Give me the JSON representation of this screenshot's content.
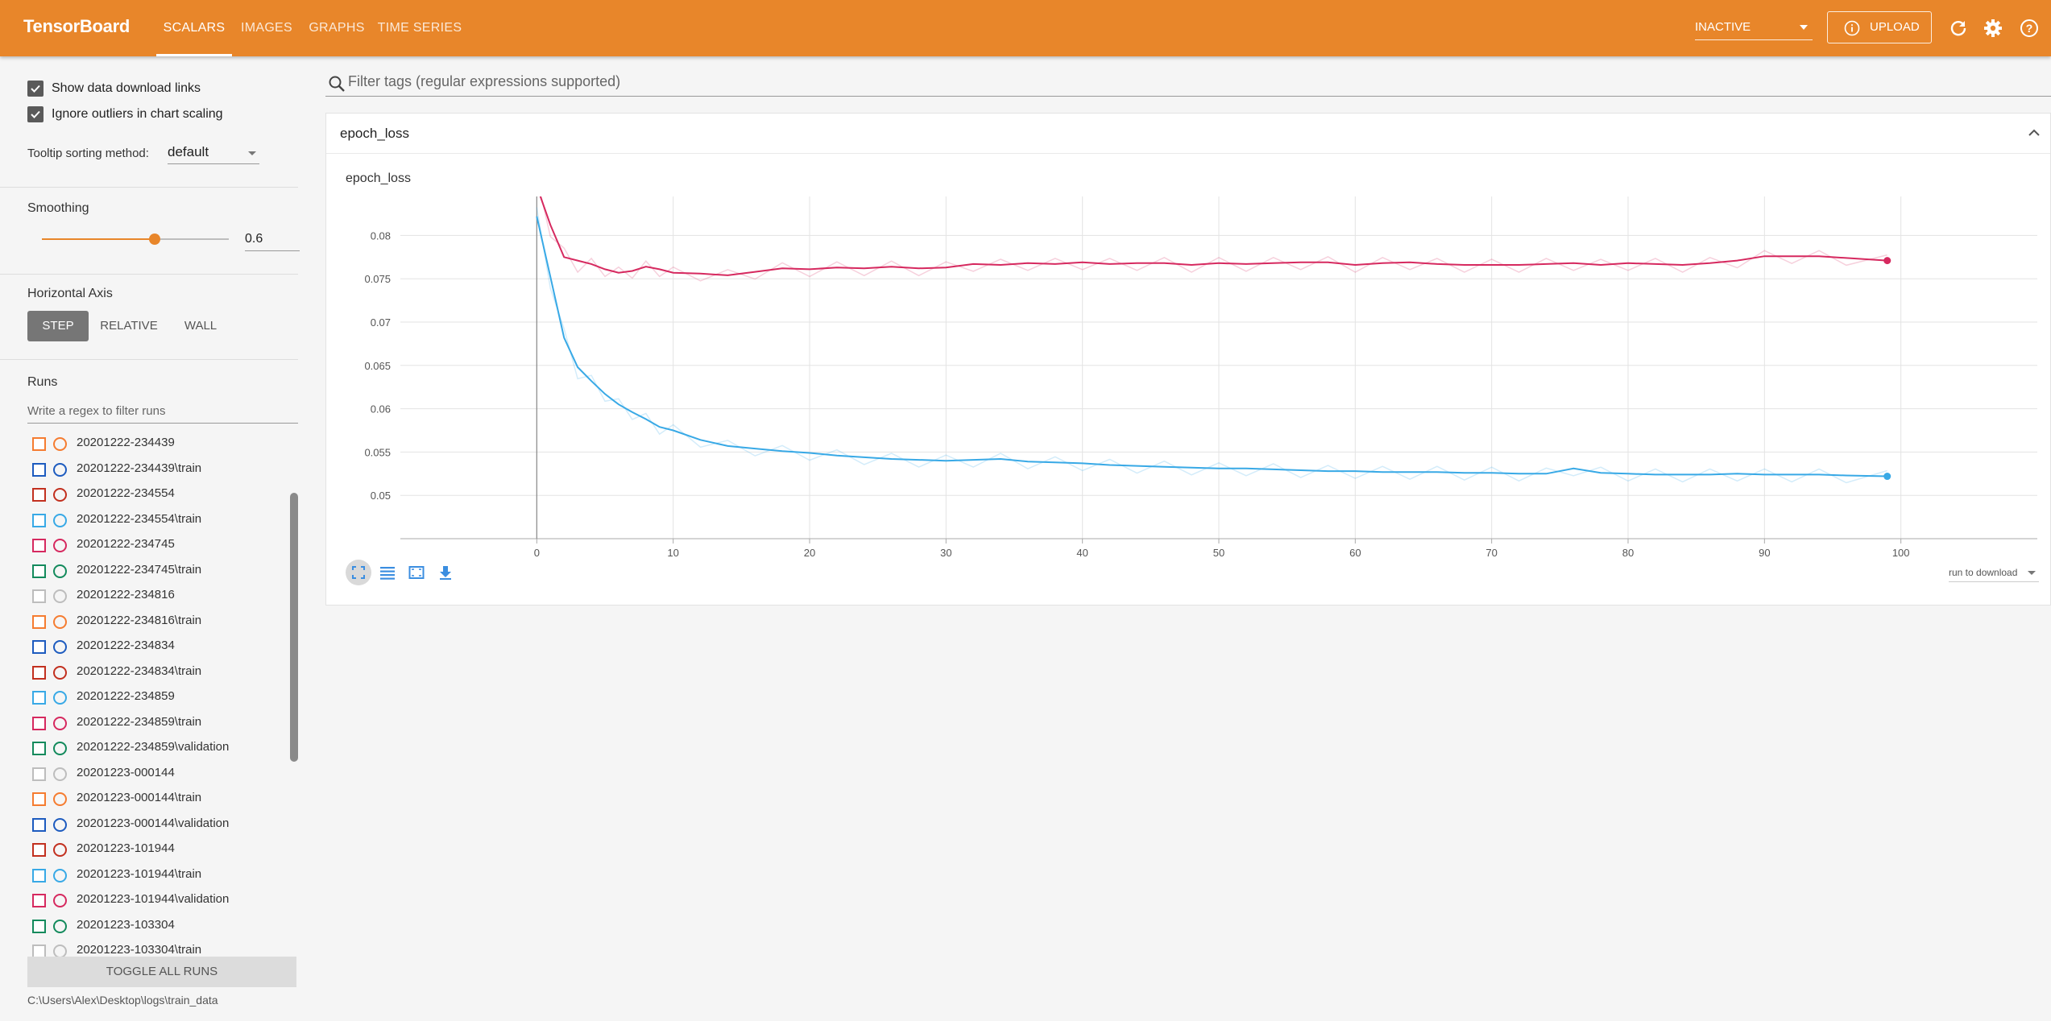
{
  "header": {
    "brand": "TensorBoard",
    "tabs": [
      {
        "label": "SCALARS",
        "active": true
      },
      {
        "label": "IMAGES",
        "active": false
      },
      {
        "label": "GRAPHS",
        "active": false
      },
      {
        "label": "TIME SERIES",
        "active": false
      }
    ],
    "status": "INACTIVE",
    "upload_label": "UPLOAD",
    "accent": "#e8862a"
  },
  "sidebar": {
    "show_download_links": {
      "label": "Show data download links",
      "checked": true
    },
    "ignore_outliers": {
      "label": "Ignore outliers in chart scaling",
      "checked": true
    },
    "tooltip_label": "Tooltip sorting method:",
    "tooltip_value": "default",
    "smoothing_label": "Smoothing",
    "smoothing_value": "0.6",
    "horizontal_axis_label": "Horizontal Axis",
    "axis_options": [
      {
        "label": "STEP",
        "active": true
      },
      {
        "label": "RELATIVE",
        "active": false
      },
      {
        "label": "WALL",
        "active": false
      }
    ],
    "runs_label": "Runs",
    "runs_filter_placeholder": "Write a regex to filter runs",
    "runs": [
      {
        "name": "20201222-234439",
        "color": "#f57c30"
      },
      {
        "name": "20201222-234439\\train",
        "color": "#1d5bbf"
      },
      {
        "name": "20201222-234554",
        "color": "#c2301f"
      },
      {
        "name": "20201222-234554\\train",
        "color": "#38a9e6"
      },
      {
        "name": "20201222-234745",
        "color": "#d6295f"
      },
      {
        "name": "20201222-234745\\train",
        "color": "#138a5c"
      },
      {
        "name": "20201222-234816",
        "color": "#bdbdbd"
      },
      {
        "name": "20201222-234816\\train",
        "color": "#f57c30"
      },
      {
        "name": "20201222-234834",
        "color": "#1d5bbf"
      },
      {
        "name": "20201222-234834\\train",
        "color": "#c2301f"
      },
      {
        "name": "20201222-234859",
        "color": "#38a9e6"
      },
      {
        "name": "20201222-234859\\train",
        "color": "#d6295f"
      },
      {
        "name": "20201222-234859\\validation",
        "color": "#138a5c"
      },
      {
        "name": "20201223-000144",
        "color": "#bdbdbd"
      },
      {
        "name": "20201223-000144\\train",
        "color": "#f57c30"
      },
      {
        "name": "20201223-000144\\validation",
        "color": "#1d5bbf"
      },
      {
        "name": "20201223-101944",
        "color": "#c2301f"
      },
      {
        "name": "20201223-101944\\train",
        "color": "#38a9e6"
      },
      {
        "name": "20201223-101944\\validation",
        "color": "#d6295f"
      },
      {
        "name": "20201223-103304",
        "color": "#138a5c"
      },
      {
        "name": "20201223-103304\\train",
        "color": "#bdbdbd"
      }
    ],
    "toggle_all_label": "TOGGLE ALL RUNS",
    "logdir": "C:\\Users\\Alex\\Desktop\\logs\\train_data"
  },
  "main": {
    "filter_placeholder": "Filter tags (regular expressions supported)",
    "card_title": "epoch_loss",
    "run_to_download": "run to download"
  },
  "chart_data": {
    "type": "line",
    "title": "epoch_loss",
    "xlim": [
      -10,
      110
    ],
    "ylim": [
      0.045,
      0.0845
    ],
    "x_ticks": [
      0,
      10,
      20,
      30,
      40,
      50,
      60,
      70,
      80,
      90,
      100
    ],
    "y_ticks": [
      0.05,
      0.055,
      0.06,
      0.065,
      0.07,
      0.075,
      0.08
    ],
    "y_tick_labels": [
      "0.05",
      "0.055",
      "0.06",
      "0.065",
      "0.07",
      "0.075",
      "0.08"
    ],
    "grid": true,
    "series": [
      {
        "color": "#d6295f",
        "x": [
          0,
          1,
          2,
          3,
          4,
          5,
          6,
          7,
          8,
          9,
          10,
          12,
          14,
          16,
          18,
          20,
          22,
          24,
          26,
          28,
          30,
          32,
          34,
          36,
          38,
          40,
          42,
          44,
          46,
          48,
          50,
          52,
          54,
          56,
          58,
          60,
          62,
          64,
          66,
          68,
          70,
          72,
          74,
          76,
          78,
          80,
          82,
          84,
          86,
          88,
          90,
          92,
          94,
          96,
          99
        ],
        "values": [
          0.0857,
          0.0812,
          0.0775,
          0.0771,
          0.0767,
          0.0761,
          0.0757,
          0.0759,
          0.0764,
          0.0761,
          0.0757,
          0.0756,
          0.0754,
          0.0758,
          0.0762,
          0.0761,
          0.0763,
          0.0762,
          0.0764,
          0.0762,
          0.0763,
          0.0767,
          0.0766,
          0.0768,
          0.0767,
          0.0769,
          0.0767,
          0.0768,
          0.0768,
          0.0766,
          0.0768,
          0.0767,
          0.0768,
          0.0769,
          0.0769,
          0.0766,
          0.0768,
          0.0769,
          0.0767,
          0.0766,
          0.0766,
          0.0766,
          0.0767,
          0.0768,
          0.0766,
          0.0768,
          0.0767,
          0.0766,
          0.0768,
          0.0771,
          0.0776,
          0.0776,
          0.0776,
          0.0774,
          0.0771
        ]
      },
      {
        "color": "#38a9e6",
        "x": [
          0,
          1,
          2,
          3,
          4,
          5,
          6,
          7,
          8,
          9,
          10,
          12,
          14,
          16,
          18,
          20,
          22,
          24,
          26,
          28,
          30,
          32,
          34,
          36,
          38,
          40,
          42,
          44,
          46,
          48,
          50,
          52,
          54,
          56,
          58,
          60,
          62,
          64,
          66,
          68,
          70,
          72,
          74,
          76,
          78,
          80,
          82,
          84,
          86,
          88,
          90,
          92,
          94,
          96,
          99
        ],
        "values": [
          0.0822,
          0.0752,
          0.0682,
          0.0648,
          0.0632,
          0.0617,
          0.0605,
          0.0596,
          0.0588,
          0.0579,
          0.0575,
          0.0564,
          0.0557,
          0.0554,
          0.0551,
          0.0549,
          0.0546,
          0.0544,
          0.0542,
          0.0541,
          0.054,
          0.0541,
          0.0542,
          0.0539,
          0.0538,
          0.0537,
          0.0535,
          0.0534,
          0.0533,
          0.0532,
          0.0531,
          0.0531,
          0.053,
          0.0529,
          0.0528,
          0.0528,
          0.0527,
          0.0527,
          0.0527,
          0.0526,
          0.0526,
          0.0525,
          0.0525,
          0.0531,
          0.0526,
          0.0525,
          0.0524,
          0.0524,
          0.0524,
          0.0525,
          0.0524,
          0.0524,
          0.0524,
          0.0523,
          0.0522
        ]
      }
    ]
  }
}
